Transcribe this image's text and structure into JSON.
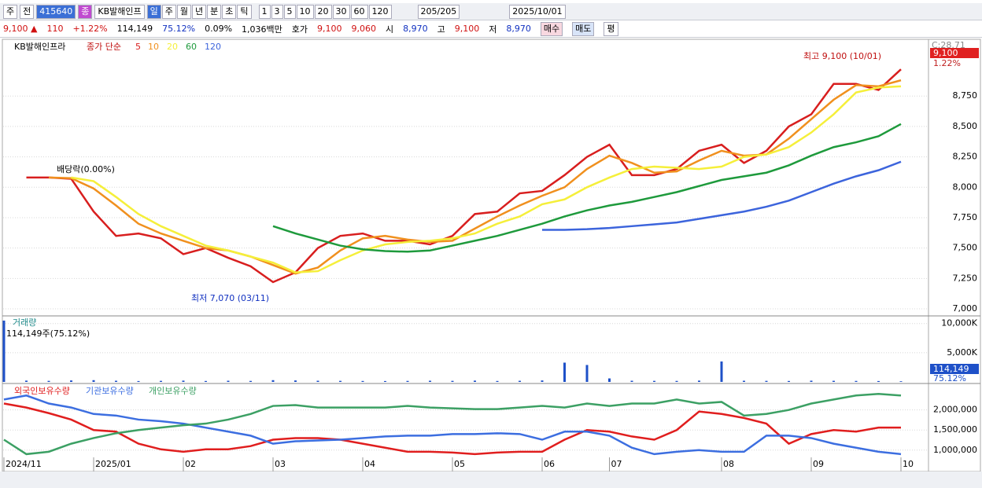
{
  "toolbar": {
    "period": "주",
    "prev": "전",
    "code": "415640",
    "kind": "종",
    "name": "KB발해인프",
    "units": [
      "일",
      "주",
      "월",
      "년",
      "분",
      "초",
      "틱"
    ],
    "ranges": [
      "1",
      "3",
      "5",
      "10",
      "20",
      "30",
      "60",
      "120"
    ],
    "count": "205/205",
    "date": "2025/10/01"
  },
  "quote": {
    "price": "9,100 ▲",
    "change": "110",
    "rate": "+1.22%",
    "volume": "114,149",
    "volume_rate": "75.12%",
    "turnover": "0.09%",
    "amount": "1,036백만",
    "ask_label": "호가",
    "ask": "9,100",
    "bid": "9,060",
    "open_label": "시",
    "open": "8,970",
    "high_label": "고",
    "high": "9,100",
    "low_label": "저",
    "low": "8,970",
    "buy": "매수",
    "sell": "매도",
    "avg": "평"
  },
  "chart_data": [
    {
      "type": "line",
      "title": "KB발해인프라",
      "subtitle": "종가 단순",
      "corner_label": "C:28.71",
      "last_label": "9,100",
      "last_rate": "1.22%",
      "annotations": [
        "최고 9,100 (10/01)",
        "최저 7,070 (03/11)",
        "배당락(0.00%)"
      ],
      "ylim": [
        6955,
        9191
      ],
      "grid": true,
      "yticks": [
        {
          "value": 7000,
          "label": "7,000"
        },
        {
          "value": 7250,
          "label": "7,250"
        },
        {
          "value": 7500,
          "label": "7,500"
        },
        {
          "value": 7750,
          "label": "7,750"
        },
        {
          "value": 8000,
          "label": "8,000"
        },
        {
          "value": 8250,
          "label": "8,250"
        },
        {
          "value": 8500,
          "label": "8,500"
        },
        {
          "value": 8750,
          "label": "8,750"
        }
      ],
      "series": [
        {
          "name": "5",
          "color": "#d81e1e",
          "values": [
            null,
            8080,
            8080,
            8070,
            7800,
            7600,
            7620,
            7580,
            7450,
            7500,
            7420,
            7350,
            7220,
            7300,
            7500,
            7600,
            7620,
            7560,
            7560,
            7530,
            7600,
            7780,
            7800,
            7950,
            7970,
            8100,
            8250,
            8350,
            8100,
            8100,
            8150,
            8300,
            8350,
            8200,
            8300,
            8500,
            8600,
            8850,
            8850,
            8800,
            8970
          ]
        },
        {
          "name": "10",
          "color": "#f0901e",
          "values": [
            null,
            null,
            8080,
            8075,
            7990,
            7850,
            7700,
            7620,
            7560,
            7500,
            7480,
            7430,
            7360,
            7290,
            7340,
            7480,
            7580,
            7600,
            7570,
            7550,
            7560,
            7660,
            7760,
            7850,
            7930,
            8000,
            8150,
            8260,
            8200,
            8120,
            8130,
            8220,
            8300,
            8260,
            8270,
            8400,
            8560,
            8720,
            8840,
            8830,
            8880
          ]
        },
        {
          "name": "20",
          "color": "#f5ef3a",
          "values": [
            null,
            null,
            null,
            8080,
            8050,
            7920,
            7780,
            7680,
            7600,
            7520,
            7480,
            7430,
            7380,
            7300,
            7310,
            7400,
            7480,
            7530,
            7550,
            7560,
            7580,
            7620,
            7700,
            7760,
            7860,
            7900,
            8000,
            8080,
            8150,
            8170,
            8160,
            8150,
            8170,
            8250,
            8270,
            8330,
            8450,
            8600,
            8780,
            8820,
            8830
          ]
        },
        {
          "name": "60",
          "color": "#1e9a3c",
          "values": [
            null,
            null,
            null,
            null,
            null,
            null,
            null,
            null,
            null,
            null,
            null,
            null,
            7680,
            7620,
            7570,
            7520,
            7490,
            7475,
            7470,
            7480,
            7520,
            7560,
            7600,
            7650,
            7700,
            7760,
            7810,
            7850,
            7880,
            7920,
            7960,
            8010,
            8060,
            8090,
            8120,
            8180,
            8260,
            8330,
            8370,
            8420,
            8520
          ]
        },
        {
          "name": "120",
          "color": "#3c64dc",
          "values": [
            null,
            null,
            null,
            null,
            null,
            null,
            null,
            null,
            null,
            null,
            null,
            null,
            null,
            null,
            null,
            null,
            null,
            null,
            null,
            null,
            null,
            null,
            null,
            null,
            7650,
            7650,
            7655,
            7665,
            7680,
            7695,
            7710,
            7740,
            7770,
            7800,
            7840,
            7890,
            7960,
            8030,
            8090,
            8140,
            8210
          ]
        }
      ]
    },
    {
      "type": "bar",
      "title": "거래량",
      "subtitle": "114,149주(75.12%)",
      "last_label": "114,149",
      "last_rate": "75.12%",
      "ylim": [
        0,
        10900000
      ],
      "grid": true,
      "yticks": [
        {
          "value": 5000000,
          "label": "5,000K"
        },
        {
          "value": 10000000,
          "label": "10,000K"
        }
      ],
      "series": [
        {
          "name": "거래량",
          "color": "#1e50c8",
          "values": [
            10500000,
            220000,
            180000,
            250000,
            300000,
            200000,
            150000,
            180000,
            220000,
            160000,
            200000,
            170000,
            300000,
            250000,
            200000,
            180000,
            160000,
            150000,
            170000,
            200000,
            180000,
            220000,
            160000,
            190000,
            250000,
            3300000,
            2900000,
            600000,
            200000,
            180000,
            170000,
            220000,
            3500000,
            200000,
            180000,
            160000,
            210000,
            190000,
            170000,
            150000,
            114149
          ]
        }
      ]
    },
    {
      "type": "line",
      "ylim": [
        820000,
        2600000
      ],
      "grid": true,
      "categories": [
        "2024/11",
        null,
        null,
        null,
        "2025/01",
        null,
        null,
        null,
        "02",
        null,
        null,
        null,
        "03",
        null,
        null,
        null,
        "04",
        null,
        null,
        null,
        "05",
        null,
        null,
        null,
        "06",
        null,
        null,
        "07",
        null,
        null,
        null,
        null,
        "08",
        null,
        null,
        null,
        "09",
        null,
        null,
        null,
        "10"
      ],
      "yticks": [
        {
          "value": 1000000,
          "label": "1,000,000"
        },
        {
          "value": 1500000,
          "label": "1,500,000"
        },
        {
          "value": 2000000,
          "label": "2,000,000"
        }
      ],
      "series": [
        {
          "name": "외국인보유수량",
          "color": "#e01e1e",
          "values": [
            2160000,
            2060000,
            1920000,
            1760000,
            1500000,
            1460000,
            1160000,
            1020000,
            960000,
            1020000,
            1020000,
            1100000,
            1260000,
            1300000,
            1300000,
            1260000,
            1160000,
            1060000,
            960000,
            960000,
            940000,
            900000,
            940000,
            960000,
            960000,
            1260000,
            1500000,
            1460000,
            1340000,
            1260000,
            1500000,
            1960000,
            1900000,
            1800000,
            1660000,
            1160000,
            1400000,
            1500000,
            1460000,
            1560000,
            1560000
          ]
        },
        {
          "name": "기관보유수량",
          "color": "#3c6ee0",
          "values": [
            2260000,
            2360000,
            2160000,
            2060000,
            1900000,
            1860000,
            1760000,
            1720000,
            1660000,
            1560000,
            1460000,
            1360000,
            1160000,
            1220000,
            1240000,
            1260000,
            1300000,
            1340000,
            1360000,
            1360000,
            1400000,
            1400000,
            1420000,
            1400000,
            1260000,
            1460000,
            1460000,
            1360000,
            1060000,
            900000,
            960000,
            1000000,
            960000,
            960000,
            1360000,
            1360000,
            1300000,
            1160000,
            1060000,
            960000,
            900000
          ]
        },
        {
          "name": "개인보유수량",
          "color": "#3ca064",
          "values": [
            1260000,
            900000,
            960000,
            1160000,
            1300000,
            1420000,
            1500000,
            1560000,
            1620000,
            1660000,
            1760000,
            1900000,
            2100000,
            2120000,
            2060000,
            2060000,
            2060000,
            2060000,
            2100000,
            2060000,
            2040000,
            2020000,
            2020000,
            2060000,
            2100000,
            2060000,
            2160000,
            2100000,
            2160000,
            2160000,
            2260000,
            2160000,
            2200000,
            1860000,
            1900000,
            2000000,
            2160000,
            2260000,
            2360000,
            2400000,
            2360000
          ]
        }
      ]
    }
  ]
}
